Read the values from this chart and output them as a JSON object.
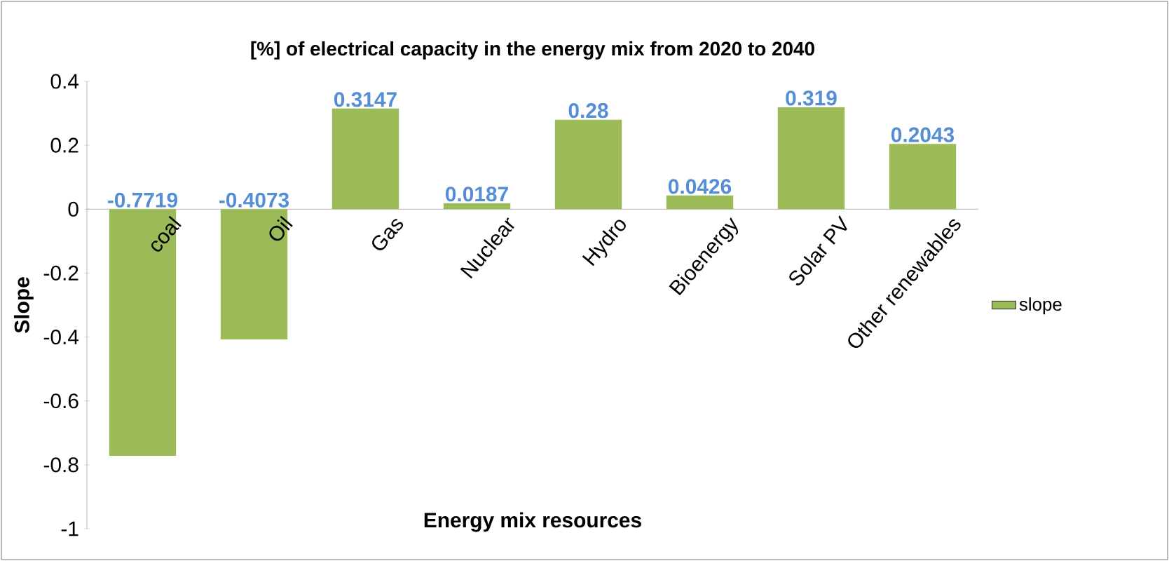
{
  "chart_data": {
    "type": "bar",
    "title": "[%] of  electrical capacity in the energy mix from  2020 to 2040",
    "xlabel": "Energy mix resources",
    "ylabel": "Slope",
    "categories": [
      "coal",
      "Oil",
      "Gas",
      "Nuclear",
      "Hydro",
      "Bioenergy",
      "Solar PV",
      "Other renewables"
    ],
    "series": [
      {
        "name": "slope",
        "color": "#9bbb59",
        "values": [
          -0.7719,
          -0.4073,
          0.3147,
          0.0187,
          0.28,
          0.0426,
          0.319,
          0.2043
        ]
      }
    ],
    "ylim": [
      -1,
      0.4
    ],
    "yticks": [
      -1,
      -0.8,
      -0.6,
      -0.4,
      -0.2,
      0,
      0.2,
      0.4
    ],
    "data_labels": true,
    "legend": "right",
    "grid": false
  }
}
